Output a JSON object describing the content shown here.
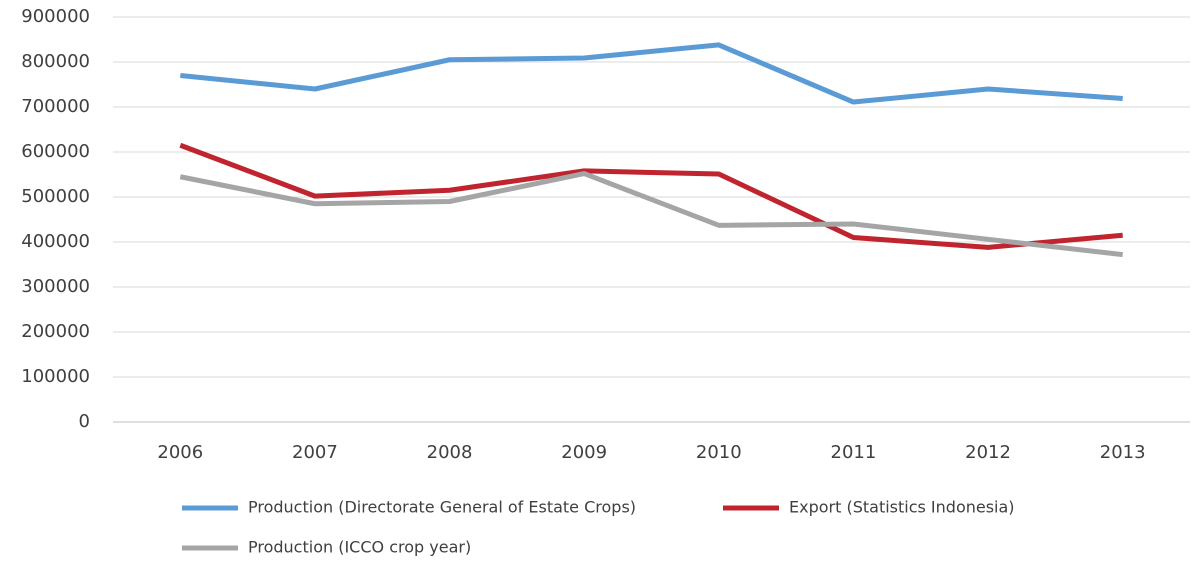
{
  "chart_data": {
    "type": "line",
    "categories": [
      "2006",
      "2007",
      "2008",
      "2009",
      "2010",
      "2011",
      "2012",
      "2013"
    ],
    "series": [
      {
        "name": "Production (Directorate General of Estate Crops)",
        "color": "#5b9bd5",
        "values": [
          770000,
          740000,
          805000,
          809000,
          838000,
          711000,
          740000,
          719000
        ]
      },
      {
        "name": "Export (Statistics Indonesia)",
        "color": "#c0242f",
        "values": [
          615000,
          502000,
          515000,
          558000,
          551000,
          410000,
          388000,
          415000
        ]
      },
      {
        "name": "Production (ICCO crop year)",
        "color": "#a5a5a5",
        "values": [
          545000,
          485000,
          490000,
          552000,
          437000,
          440000,
          406000,
          372000
        ]
      }
    ],
    "ylim": [
      0,
      900000
    ],
    "yticks": [
      0,
      100000,
      200000,
      300000,
      400000,
      500000,
      600000,
      700000,
      800000,
      900000
    ],
    "grid": true,
    "legend": "bottom"
  }
}
